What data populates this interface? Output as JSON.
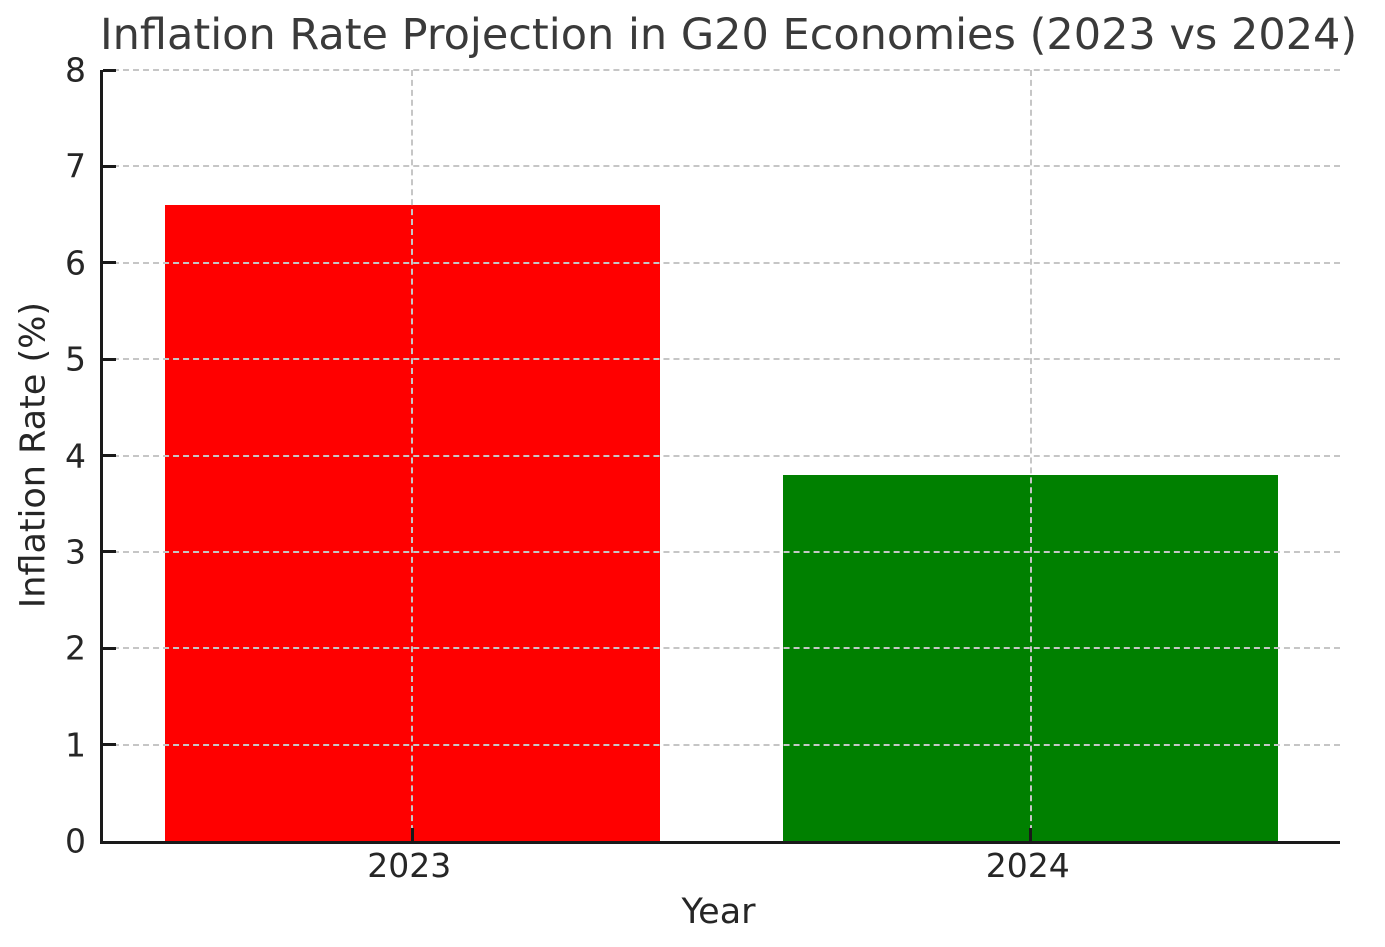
{
  "chart_data": {
    "type": "bar",
    "title": "Inflation Rate Projection in G20 Economies (2023 vs 2024)",
    "xlabel": "Year",
    "ylabel": "Inflation Rate (%)",
    "categories": [
      "2023",
      "2024"
    ],
    "values": [
      6.6,
      3.8
    ],
    "bar_colors": [
      "#ff0000",
      "#008000"
    ],
    "bar_width_fraction": 0.8,
    "ylim": [
      0,
      8
    ],
    "yticks": [
      0,
      1,
      2,
      3,
      4,
      5,
      6,
      7,
      8
    ],
    "grid": true,
    "grid_line_style": "dashed",
    "legend": "none"
  },
  "colors": {
    "bar_2023": "#ff0000",
    "bar_2024": "#008000",
    "grid": "#c6c6c6",
    "axis": "#1a1a1a",
    "tick_text": "#262626",
    "title_text": "#3a3a3a",
    "background": "#ffffff"
  }
}
